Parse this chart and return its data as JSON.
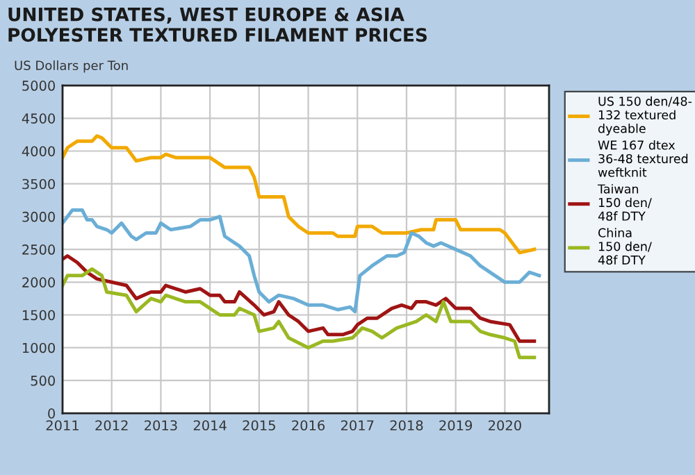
{
  "chart_data": {
    "type": "line",
    "title": "UNITED STATES, WEST EUROPE & ASIA\nPOLYESTER TEXTURED FILAMENT PRICES",
    "ylabel": "US Dollars per Ton",
    "xlim": [
      2011,
      2020.9
    ],
    "xticks": [
      2011,
      2012,
      2013,
      2014,
      2015,
      2016,
      2017,
      2018,
      2019,
      2020
    ],
    "ylim": [
      0,
      5000
    ],
    "yticks": [
      0,
      500,
      1000,
      1500,
      2000,
      2500,
      3000,
      3500,
      4000,
      4500,
      5000
    ],
    "grid": true,
    "legend": "right",
    "marker": "none",
    "line_style": "solid",
    "series": [
      {
        "name": "US 150 den/48-\n132 textured\ndyeable",
        "color": "#f2a900",
        "x": [
          2011,
          2011.1,
          2011.3,
          2011.6,
          2011.7,
          2011.8,
          2012,
          2012.3,
          2012.5,
          2012.8,
          2013,
          2013.1,
          2013.3,
          2014,
          2014.1,
          2014.3,
          2014.8,
          2014.9,
          2015,
          2015.5,
          2015.6,
          2015.8,
          2016,
          2016.5,
          2016.6,
          2016.95,
          2017,
          2017.3,
          2017.5,
          2018,
          2018.3,
          2018.55,
          2018.6,
          2019,
          2019.1,
          2019.3,
          2019.9,
          2020,
          2020.3,
          2020.6
        ],
        "values": [
          3900,
          4050,
          4150,
          4150,
          4230,
          4200,
          4050,
          4050,
          3850,
          3900,
          3900,
          3950,
          3900,
          3900,
          3850,
          3750,
          3750,
          3600,
          3300,
          3300,
          3000,
          2850,
          2750,
          2750,
          2700,
          2700,
          2850,
          2850,
          2750,
          2750,
          2800,
          2800,
          2950,
          2950,
          2800,
          2800,
          2800,
          2750,
          2450,
          2500
        ]
      },
      {
        "name": "WE 167 dtex\n36-48 textured\nweftknit",
        "color": "#6aaed6",
        "x": [
          2011,
          2011.2,
          2011.4,
          2011.5,
          2011.6,
          2011.7,
          2011.9,
          2012,
          2012.2,
          2012.4,
          2012.5,
          2012.7,
          2012.9,
          2013,
          2013.2,
          2013.6,
          2013.8,
          2014,
          2014.2,
          2014.3,
          2014.6,
          2014.8,
          2014.9,
          2015,
          2015.2,
          2015.4,
          2015.7,
          2016,
          2016.3,
          2016.6,
          2016.85,
          2016.95,
          2017.05,
          2017.3,
          2017.6,
          2017.8,
          2017.95,
          2018.1,
          2018.25,
          2018.4,
          2018.55,
          2018.7,
          2019,
          2019.3,
          2019.5,
          2019.8,
          2020,
          2020.3,
          2020.5,
          2020.7
        ],
        "values": [
          2900,
          3100,
          3100,
          2950,
          2950,
          2850,
          2800,
          2750,
          2900,
          2700,
          2650,
          2750,
          2750,
          2900,
          2800,
          2850,
          2950,
          2950,
          3000,
          2700,
          2550,
          2400,
          2100,
          1850,
          1700,
          1800,
          1750,
          1650,
          1650,
          1580,
          1620,
          1550,
          2100,
          2250,
          2400,
          2400,
          2450,
          2750,
          2700,
          2600,
          2550,
          2600,
          2500,
          2400,
          2250,
          2100,
          2000,
          2000,
          2150,
          2100
        ]
      },
      {
        "name": "Taiwan\n150 den/\n48f DTY",
        "color": "#a01414",
        "x": [
          2011,
          2011.1,
          2011.3,
          2011.5,
          2011.7,
          2012,
          2012.3,
          2012.5,
          2012.8,
          2013,
          2013.1,
          2013.5,
          2013.8,
          2014,
          2014.2,
          2014.3,
          2014.5,
          2014.6,
          2014.9,
          2015.1,
          2015.3,
          2015.4,
          2015.6,
          2015.8,
          2016,
          2016.3,
          2016.4,
          2016.7,
          2016.9,
          2017,
          2017.2,
          2017.4,
          2017.7,
          2017.9,
          2018.1,
          2018.2,
          2018.4,
          2018.6,
          2018.7,
          2018.8,
          2019,
          2019.3,
          2019.5,
          2019.7,
          2020.1,
          2020.3,
          2020.6
        ],
        "values": [
          2350,
          2400,
          2300,
          2150,
          2050,
          2000,
          1950,
          1750,
          1850,
          1850,
          1950,
          1850,
          1900,
          1800,
          1800,
          1700,
          1700,
          1850,
          1650,
          1500,
          1550,
          1700,
          1500,
          1400,
          1250,
          1300,
          1200,
          1200,
          1250,
          1350,
          1450,
          1450,
          1600,
          1650,
          1600,
          1700,
          1700,
          1650,
          1700,
          1750,
          1600,
          1600,
          1450,
          1400,
          1350,
          1100,
          1100
        ]
      },
      {
        "name": "China\n150 den/\n48f DTY",
        "color": "#9ab822",
        "x": [
          2011,
          2011.1,
          2011.4,
          2011.6,
          2011.8,
          2011.9,
          2012.3,
          2012.5,
          2012.8,
          2013,
          2013.1,
          2013.3,
          2013.5,
          2013.8,
          2014,
          2014.2,
          2014.5,
          2014.6,
          2014.9,
          2015,
          2015.3,
          2015.4,
          2015.6,
          2016,
          2016.3,
          2016.5,
          2016.9,
          2017.1,
          2017.3,
          2017.5,
          2017.8,
          2018,
          2018.2,
          2018.4,
          2018.6,
          2018.75,
          2018.9,
          2019.3,
          2019.5,
          2019.7,
          2020,
          2020.2,
          2020.3,
          2020.6
        ],
        "values": [
          1950,
          2100,
          2100,
          2200,
          2100,
          1850,
          1800,
          1550,
          1750,
          1700,
          1800,
          1750,
          1700,
          1700,
          1600,
          1500,
          1500,
          1600,
          1500,
          1250,
          1300,
          1400,
          1150,
          1000,
          1100,
          1100,
          1150,
          1300,
          1250,
          1150,
          1300,
          1350,
          1400,
          1500,
          1400,
          1700,
          1400,
          1400,
          1250,
          1200,
          1150,
          1100,
          850,
          850
        ]
      }
    ]
  }
}
